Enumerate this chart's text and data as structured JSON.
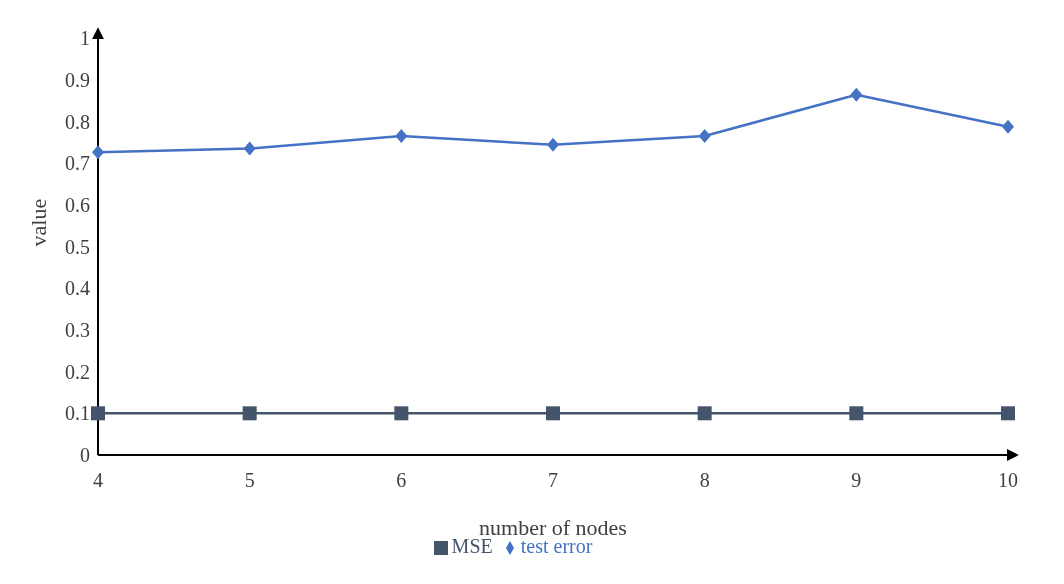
{
  "chart_data": {
    "type": "line",
    "xlabel": "number of nodes",
    "ylabel": "value",
    "categories": [
      "4",
      "5",
      "6",
      "7",
      "8",
      "9",
      "10"
    ],
    "series": [
      {
        "name": "test error",
        "color": "#4472c4",
        "marker": "diamond",
        "values": [
          0.726,
          0.735,
          0.765,
          0.744,
          0.765,
          0.864,
          0.787
        ]
      },
      {
        "name": "MSE",
        "color": "#44546a",
        "marker": "square",
        "values": [
          0.1,
          0.1,
          0.1,
          0.1,
          0.1,
          0.1,
          0.1
        ]
      }
    ],
    "ylim": [
      0,
      1
    ],
    "yticks": [
      0,
      0.1,
      0.2,
      0.3,
      0.4,
      0.5,
      0.6,
      0.7,
      0.8,
      0.9,
      1
    ],
    "grid": false,
    "legend": "bottom"
  }
}
